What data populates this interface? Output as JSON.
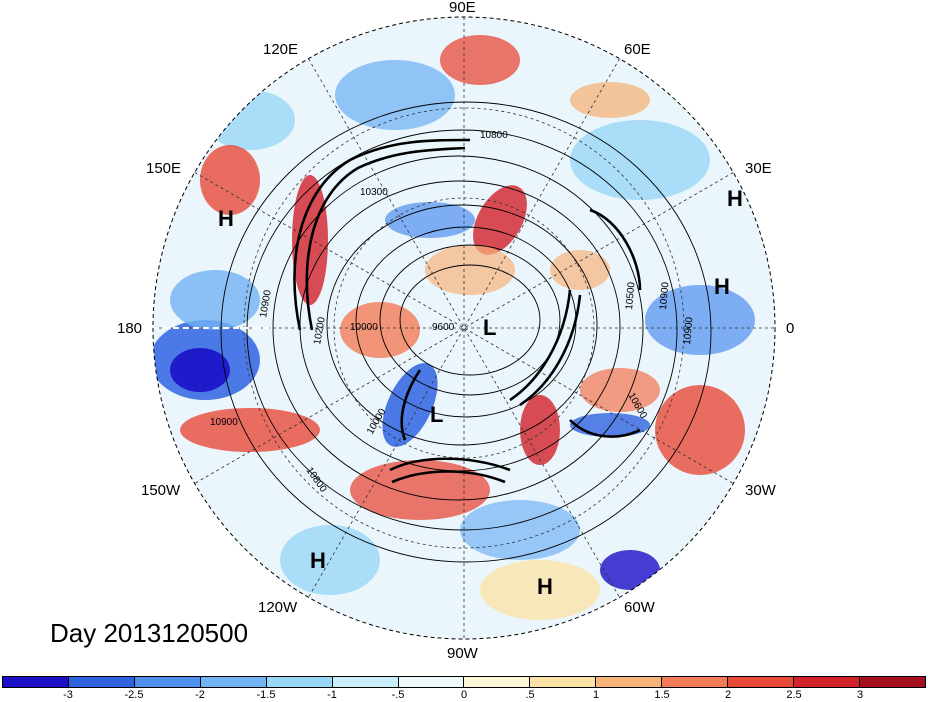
{
  "map": {
    "date_label": "Day 2013120500",
    "longitude_labels": {
      "lon_90e": "90E",
      "lon_120e": "120E",
      "lon_60e": "60E",
      "lon_150e": "150E",
      "lon_30e": "30E",
      "lon_180": "180",
      "lon_0": "0",
      "lon_150w": "150W",
      "lon_30w": "30W",
      "lon_120w": "120W",
      "lon_60w": "60W",
      "lon_90w": "90W"
    },
    "pressure_systems": [
      {
        "type": "H"
      },
      {
        "type": "H"
      },
      {
        "type": "H"
      },
      {
        "type": "L"
      },
      {
        "type": "L"
      },
      {
        "type": "H"
      },
      {
        "type": "H"
      }
    ],
    "contour_labels": [
      "10800",
      "10300",
      "10900",
      "10200",
      "10000",
      "9600",
      "10000",
      "10500",
      "10900",
      "10900",
      "10600",
      "10800",
      "10900"
    ]
  },
  "colorbar": {
    "colors": [
      "#1b0fc7",
      "#2f63e0",
      "#4f8ff0",
      "#72b3f4",
      "#99d7f7",
      "#c8eefa",
      "#eef9fb",
      "#fdf6d6",
      "#fbe3a8",
      "#f6b37a",
      "#f27c58",
      "#e84a3a",
      "#d2222a",
      "#a50f1e"
    ],
    "labels": [
      "-3",
      "-2.5",
      "-2",
      "-1.5",
      "-1",
      "-.5",
      "0",
      ".5",
      "1",
      "1.5",
      "2",
      "2.5",
      "3"
    ]
  }
}
